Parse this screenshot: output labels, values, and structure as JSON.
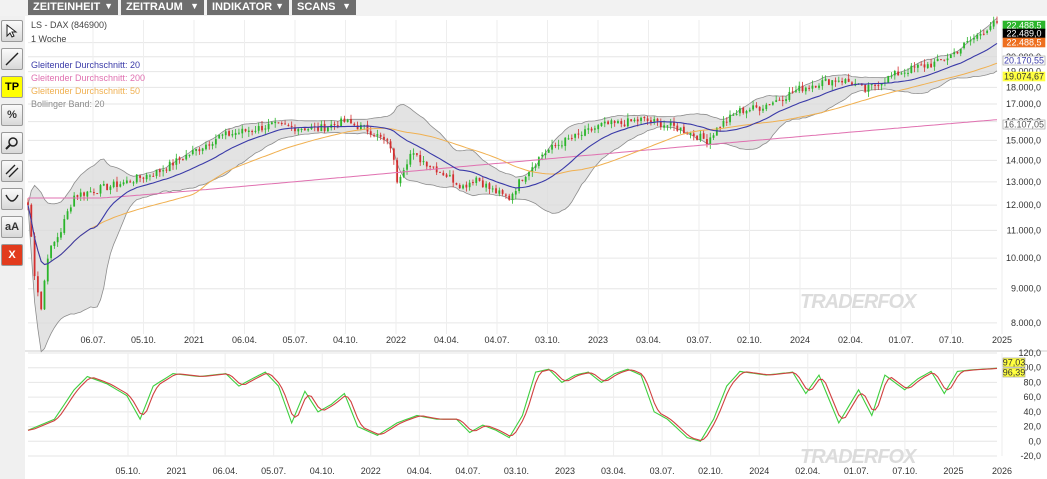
{
  "menu": [
    {
      "label": "ZEITEINHEIT"
    },
    {
      "label": "ZEITRAUM"
    },
    {
      "label": "INDIKATOR"
    },
    {
      "label": "SCANS"
    }
  ],
  "toolbar": [
    {
      "label": "",
      "icon": "cursor-icon"
    },
    {
      "label": "",
      "icon": "trendline-icon"
    },
    {
      "label": "TP",
      "icon": ""
    },
    {
      "label": "%",
      "icon": ""
    },
    {
      "label": "",
      "icon": "zoom-icon"
    },
    {
      "label": "",
      "icon": "channel-icon"
    },
    {
      "label": "",
      "icon": "arc-icon"
    },
    {
      "label": "aA",
      "icon": ""
    },
    {
      "label": "X",
      "icon": ""
    }
  ],
  "watermark": "TRADERFOX",
  "colors": {
    "up": "#2bb52b",
    "down": "#d32f2f",
    "sma20": "#3a3aa8",
    "sma200": "#e070b0",
    "sma50": "#f0b050",
    "bb": "#8c8c8c",
    "k": "#3fcf3f",
    "d": "#d04040"
  },
  "chart_data": [
    {
      "type": "candlestick",
      "symbol": "LS - DAX (846900)",
      "interval": "1 Woche",
      "legend": [
        {
          "name": "Gleitender Durchschnitt: 20",
          "color": "#3a3aa8"
        },
        {
          "name": "Gleitender Durchschnitt: 200",
          "color": "#e070b0"
        },
        {
          "name": "Gleitender Durchschnitt: 50",
          "color": "#f0b050"
        },
        {
          "name": "Bollinger Band: 20",
          "color": "#8c8c8c"
        }
      ],
      "y_ticks": [
        "8.000,0",
        "9.000,0",
        "10.000,0",
        "11.000,0",
        "12.000,0",
        "13.000,0",
        "14.000,0",
        "15.000,0",
        "16.000,0",
        "17.000,0",
        "18.000,0",
        "19.000,0",
        "20.000,0",
        "21.000,0"
      ],
      "x_ticks": [
        "06.07.",
        "05.10.",
        "2021",
        "06.04.",
        "05.07.",
        "04.10.",
        "2022",
        "04.04.",
        "04.07.",
        "03.10.",
        "2023",
        "03.04.",
        "03.07.",
        "02.10.",
        "2024",
        "02.04.",
        "01.07.",
        "07.10.",
        "2025"
      ],
      "price_labels": [
        {
          "text": "22.488,5",
          "bg": "#2bb52b",
          "fg": "#ffffff",
          "value": 22488.5
        },
        {
          "text": "22.489,0",
          "bg": "#000000",
          "fg": "#ffffff",
          "value": 22489.0
        },
        {
          "text": "22.488,5",
          "bg": "#ee7020",
          "fg": "#ffffff",
          "value": 22488.5
        },
        {
          "text": "20.170,55",
          "bg": "#ffffff",
          "fg": "#3a3aa8",
          "value": 20170.55
        },
        {
          "text": "19.074,67",
          "bg": "#ffff40",
          "fg": "#333333",
          "value": 19074.67
        },
        {
          "text": "16.107,05",
          "bg": "#ffffff",
          "fg": "#555555",
          "value": 16107.05
        }
      ],
      "close_anchors": [
        [
          0,
          12000
        ],
        [
          2,
          9500
        ],
        [
          4,
          8400
        ],
        [
          6,
          10100
        ],
        [
          10,
          11000
        ],
        [
          14,
          12400
        ],
        [
          22,
          12700
        ],
        [
          30,
          13000
        ],
        [
          40,
          13500
        ],
        [
          50,
          14400
        ],
        [
          58,
          15200
        ],
        [
          66,
          15500
        ],
        [
          74,
          15800
        ],
        [
          80,
          15700
        ],
        [
          88,
          15600
        ],
        [
          96,
          16000
        ],
        [
          104,
          15500
        ],
        [
          110,
          14700
        ],
        [
          112,
          13100
        ],
        [
          116,
          14300
        ],
        [
          122,
          13800
        ],
        [
          126,
          13400
        ],
        [
          132,
          12800
        ],
        [
          136,
          13200
        ],
        [
          140,
          12700
        ],
        [
          144,
          12400
        ],
        [
          146,
          12300
        ],
        [
          150,
          13200
        ],
        [
          156,
          14300
        ],
        [
          162,
          14900
        ],
        [
          168,
          15300
        ],
        [
          174,
          15800
        ],
        [
          180,
          15900
        ],
        [
          186,
          16100
        ],
        [
          192,
          15900
        ],
        [
          198,
          15600
        ],
        [
          202,
          15300
        ],
        [
          206,
          15000
        ],
        [
          210,
          15800
        ],
        [
          216,
          16600
        ],
        [
          222,
          16800
        ],
        [
          228,
          17300
        ],
        [
          234,
          17900
        ],
        [
          240,
          18300
        ],
        [
          246,
          18500
        ],
        [
          250,
          18300
        ],
        [
          254,
          17800
        ],
        [
          258,
          18300
        ],
        [
          264,
          18900
        ],
        [
          270,
          19300
        ],
        [
          276,
          19600
        ],
        [
          280,
          20100
        ],
        [
          284,
          20800
        ],
        [
          288,
          21500
        ],
        [
          292,
          22300
        ],
        [
          294,
          22489
        ]
      ]
    },
    {
      "type": "line",
      "y_ticks": [
        "-20,0",
        "0,0",
        "20,0",
        "40,0",
        "60,0",
        "80,0",
        "100,0",
        "120,0"
      ],
      "x_ticks": [
        "05.10.",
        "2021",
        "06.04.",
        "05.07.",
        "04.10.",
        "2022",
        "04.04.",
        "04.07.",
        "03.10.",
        "2023",
        "03.04.",
        "03.07.",
        "02.10.",
        "2024",
        "02.04.",
        "01.07.",
        "07.10.",
        "2025",
        "2026"
      ],
      "last_values": [
        {
          "text": "97,03",
          "bg": "#ffff40",
          "value": 97.03
        },
        {
          "text": "96,39",
          "bg": "#ffff40",
          "value": 96.39
        }
      ],
      "k_anchors": [
        [
          0,
          15
        ],
        [
          8,
          30
        ],
        [
          14,
          70
        ],
        [
          18,
          88
        ],
        [
          24,
          78
        ],
        [
          30,
          62
        ],
        [
          34,
          30
        ],
        [
          38,
          75
        ],
        [
          44,
          92
        ],
        [
          52,
          88
        ],
        [
          60,
          92
        ],
        [
          64,
          75
        ],
        [
          68,
          85
        ],
        [
          72,
          94
        ],
        [
          76,
          75
        ],
        [
          80,
          25
        ],
        [
          84,
          68
        ],
        [
          88,
          40
        ],
        [
          92,
          50
        ],
        [
          96,
          65
        ],
        [
          100,
          20
        ],
        [
          106,
          8
        ],
        [
          112,
          25
        ],
        [
          118,
          35
        ],
        [
          124,
          30
        ],
        [
          130,
          30
        ],
        [
          134,
          12
        ],
        [
          138,
          22
        ],
        [
          142,
          15
        ],
        [
          146,
          5
        ],
        [
          150,
          35
        ],
        [
          154,
          94
        ],
        [
          158,
          98
        ],
        [
          162,
          80
        ],
        [
          166,
          90
        ],
        [
          170,
          94
        ],
        [
          174,
          80
        ],
        [
          178,
          92
        ],
        [
          182,
          98
        ],
        [
          186,
          90
        ],
        [
          190,
          40
        ],
        [
          194,
          30
        ],
        [
          200,
          5
        ],
        [
          204,
          0
        ],
        [
          208,
          30
        ],
        [
          212,
          75
        ],
        [
          216,
          95
        ],
        [
          224,
          90
        ],
        [
          232,
          94
        ],
        [
          236,
          65
        ],
        [
          240,
          90
        ],
        [
          246,
          25
        ],
        [
          252,
          70
        ],
        [
          256,
          35
        ],
        [
          260,
          90
        ],
        [
          266,
          70
        ],
        [
          270,
          85
        ],
        [
          274,
          95
        ],
        [
          278,
          65
        ],
        [
          282,
          95
        ],
        [
          286,
          97
        ]
      ]
    }
  ]
}
